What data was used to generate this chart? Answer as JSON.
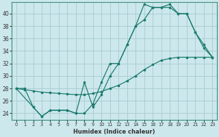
{
  "xlabel": "Humidex (Indice chaleur)",
  "background_color": "#cce8ec",
  "grid_color": "#aacdd4",
  "line_color": "#1a7a6e",
  "xlim": [
    -0.5,
    23.5
  ],
  "ylim": [
    23.0,
    41.8
  ],
  "yticks": [
    24,
    26,
    28,
    30,
    32,
    34,
    36,
    38,
    40
  ],
  "xticks": [
    0,
    1,
    2,
    3,
    4,
    5,
    6,
    7,
    8,
    9,
    10,
    11,
    12,
    13,
    14,
    15,
    16,
    17,
    18,
    19,
    20,
    21,
    22,
    23
  ],
  "line1_x": [
    0,
    1,
    2,
    3,
    4,
    5,
    6,
    7,
    8,
    9,
    10,
    11,
    12,
    13,
    14,
    15,
    16,
    17,
    18,
    19,
    20,
    21,
    22,
    23
  ],
  "line1_y": [
    28.0,
    27.8,
    27.6,
    27.4,
    27.3,
    27.2,
    27.1,
    27.0,
    27.0,
    27.2,
    27.5,
    28.0,
    28.5,
    29.2,
    30.0,
    31.0,
    31.8,
    32.5,
    32.8,
    33.0,
    33.0,
    33.0,
    33.0,
    33.0
  ],
  "line2_x": [
    0,
    2,
    3,
    4,
    5,
    6,
    7,
    8,
    9,
    10,
    11,
    12,
    13,
    14,
    15,
    16,
    17,
    18,
    19,
    20,
    21,
    22,
    23
  ],
  "line2_y": [
    28.0,
    25.0,
    23.5,
    24.5,
    24.5,
    24.5,
    24.0,
    24.0,
    25.5,
    29.0,
    32.0,
    32.0,
    35.0,
    38.0,
    41.5,
    41.0,
    41.0,
    41.5,
    40.0,
    40.0,
    37.0,
    34.5,
    33.0
  ],
  "line3_x": [
    0,
    1,
    2,
    3,
    4,
    5,
    6,
    7,
    8,
    9,
    10,
    11,
    12,
    13,
    14,
    15,
    16,
    17,
    18,
    19,
    20,
    21,
    22,
    23
  ],
  "line3_y": [
    28.0,
    28.0,
    25.0,
    23.5,
    24.5,
    24.5,
    24.5,
    24.0,
    29.0,
    25.0,
    27.0,
    30.0,
    32.0,
    35.0,
    38.0,
    39.0,
    41.0,
    41.0,
    41.0,
    40.0,
    40.0,
    37.0,
    35.0,
    33.0
  ]
}
